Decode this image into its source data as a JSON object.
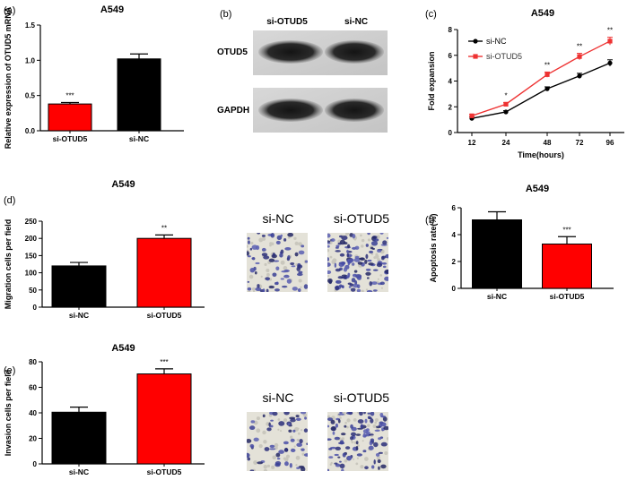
{
  "panels": [
    {
      "letter": "(a)",
      "name": "a"
    },
    {
      "letter": "(b)",
      "name": "b"
    },
    {
      "letter": "(c)",
      "name": "c"
    },
    {
      "letter": "(d)",
      "name": "d"
    },
    {
      "letter": "(e)",
      "name": "e"
    },
    {
      "letter": "(f)",
      "name": "f"
    }
  ],
  "blot": {
    "lanes": [
      "si-OTUD5",
      "si-NC"
    ],
    "bands": [
      "OTUD5",
      "GAPDH"
    ]
  },
  "images": {
    "d": {
      "labels": [
        "si-NC",
        "si-OTUD5"
      ]
    },
    "e": {
      "labels": [
        "si-NC",
        "si-OTUD5"
      ]
    }
  },
  "colors": {
    "black": "#000000",
    "red": "#ff0000"
  },
  "chart_data": [
    {
      "id": "a",
      "type": "bar",
      "title": "A549",
      "ylabel": "Relative expression of OTUD5 mRNA",
      "categories": [
        "si-OTUD5",
        "si-NC"
      ],
      "values": [
        0.38,
        1.02
      ],
      "errors": [
        0.02,
        0.07
      ],
      "colors": [
        "#ff0000",
        "#000000"
      ],
      "significance": [
        "***",
        ""
      ],
      "ylim": [
        0,
        1.5
      ],
      "yticks": [
        0.0,
        0.5,
        1.0,
        1.5
      ],
      "ytick_labels": [
        "0.0",
        "0.5",
        "1.0",
        "1.5"
      ]
    },
    {
      "id": "c",
      "type": "line",
      "title": "A549",
      "xlabel": "Time(hours)",
      "ylabel": "Fold expansion",
      "x": [
        12,
        24,
        48,
        72,
        96
      ],
      "series": [
        {
          "name": "si-NC",
          "values": [
            1.1,
            1.6,
            3.4,
            4.4,
            5.4
          ],
          "errors": [
            0.1,
            0.1,
            0.15,
            0.2,
            0.25
          ],
          "color": "#000000"
        },
        {
          "name": "si-OTUD5",
          "values": [
            1.3,
            2.2,
            4.5,
            5.9,
            7.1
          ],
          "errors": [
            0.1,
            0.12,
            0.2,
            0.25,
            0.3
          ],
          "color": "#ee3333"
        }
      ],
      "significance": [
        "",
        "*",
        "**",
        "**",
        "**"
      ],
      "ylim": [
        0,
        8
      ],
      "yticks": [
        0,
        2,
        4,
        6,
        8
      ],
      "legend": "top-left"
    },
    {
      "id": "d",
      "type": "bar",
      "title": "A549",
      "ylabel": "Migration cells per field",
      "categories": [
        "si-NC",
        "si-OTUD5"
      ],
      "values": [
        120,
        200
      ],
      "errors": [
        10,
        10
      ],
      "colors": [
        "#000000",
        "#ff0000"
      ],
      "significance": [
        "",
        "**"
      ],
      "ylim": [
        0,
        250
      ],
      "yticks": [
        0,
        50,
        100,
        150,
        200,
        250
      ]
    },
    {
      "id": "e",
      "type": "bar",
      "title": "A549",
      "ylabel": "Invasion cells per field",
      "categories": [
        "si-NC",
        "si-OTUD5"
      ],
      "values": [
        40.5,
        70.5
      ],
      "errors": [
        4,
        4
      ],
      "colors": [
        "#000000",
        "#ff0000"
      ],
      "significance": [
        "",
        "***"
      ],
      "ylim": [
        0,
        80
      ],
      "yticks": [
        0,
        20,
        40,
        60,
        80
      ]
    },
    {
      "id": "f",
      "type": "bar",
      "title": "A549",
      "ylabel": "Apoptosis rate(%)",
      "categories": [
        "si-NC",
        "si-OTUD5"
      ],
      "values": [
        5.1,
        3.3
      ],
      "errors": [
        0.6,
        0.55
      ],
      "colors": [
        "#000000",
        "#ff0000"
      ],
      "significance": [
        "",
        "***"
      ],
      "ylim": [
        0,
        6
      ],
      "yticks": [
        0,
        2,
        4,
        6
      ]
    }
  ]
}
